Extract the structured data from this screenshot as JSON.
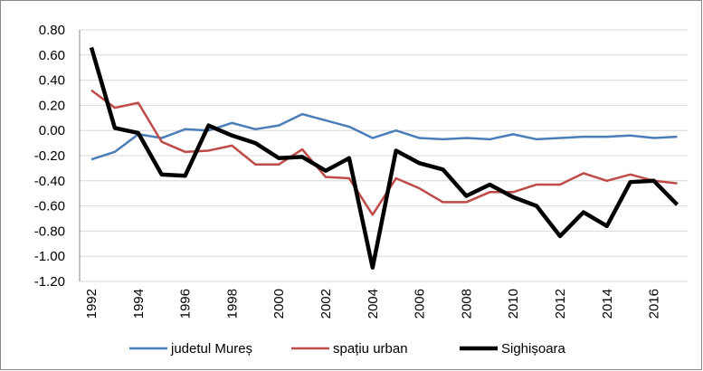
{
  "chart_data": {
    "type": "line",
    "categories": [
      "1992",
      null,
      "1994",
      null,
      "1996",
      null,
      "1998",
      null,
      "2000",
      null,
      "2002",
      null,
      "2004",
      null,
      "2006",
      null,
      "2008",
      null,
      "2010",
      null,
      "2012",
      null,
      "2014",
      null,
      "2016",
      null
    ],
    "series": [
      {
        "name": "judetul Mureș",
        "color": "#4a7ebb",
        "width": 2.5,
        "values": [
          -0.23,
          -0.17,
          -0.03,
          -0.06,
          0.01,
          0.0,
          0.06,
          0.01,
          0.04,
          0.13,
          0.08,
          0.03,
          -0.06,
          0.0,
          -0.06,
          -0.07,
          -0.06,
          -0.07,
          -0.03,
          -0.07,
          -0.06,
          -0.05,
          -0.05,
          -0.04,
          -0.06,
          -0.05
        ]
      },
      {
        "name": "spațiu urban",
        "color": "#be4b48",
        "width": 2.5,
        "values": [
          0.32,
          0.18,
          0.22,
          -0.09,
          -0.17,
          -0.16,
          -0.12,
          -0.27,
          -0.27,
          -0.15,
          -0.37,
          -0.38,
          -0.67,
          -0.38,
          -0.46,
          -0.57,
          -0.57,
          -0.49,
          -0.49,
          -0.43,
          -0.43,
          -0.34,
          -0.4,
          -0.35,
          -0.4,
          -0.42
        ]
      },
      {
        "name": "Sighișoara",
        "color": "#000000",
        "width": 4.5,
        "values": [
          0.66,
          0.02,
          -0.02,
          -0.35,
          -0.36,
          0.04,
          -0.04,
          -0.1,
          -0.22,
          -0.21,
          -0.32,
          -0.22,
          -1.09,
          -0.16,
          -0.26,
          -0.31,
          -0.52,
          -0.43,
          -0.53,
          -0.6,
          -0.84,
          -0.65,
          -0.76,
          -0.41,
          -0.4,
          -0.59
        ]
      }
    ],
    "ylim": [
      -1.2,
      0.8
    ],
    "yticks": [
      {
        "value": 0.8,
        "label": "0.80"
      },
      {
        "value": 0.6,
        "label": "0.60"
      },
      {
        "value": 0.4,
        "label": "0.40"
      },
      {
        "value": 0.2,
        "label": "0.20"
      },
      {
        "value": 0,
        "label": "0.00"
      },
      {
        "value": -0.2,
        "label": "-0.20"
      },
      {
        "value": -0.4,
        "label": "-0.40"
      },
      {
        "value": -0.6,
        "label": "-0.60"
      },
      {
        "value": -0.8,
        "label": "-0.80"
      },
      {
        "value": -1.0,
        "label": "-1.00"
      },
      {
        "value": -1.2,
        "label": "-1.20"
      }
    ],
    "grid": true
  }
}
